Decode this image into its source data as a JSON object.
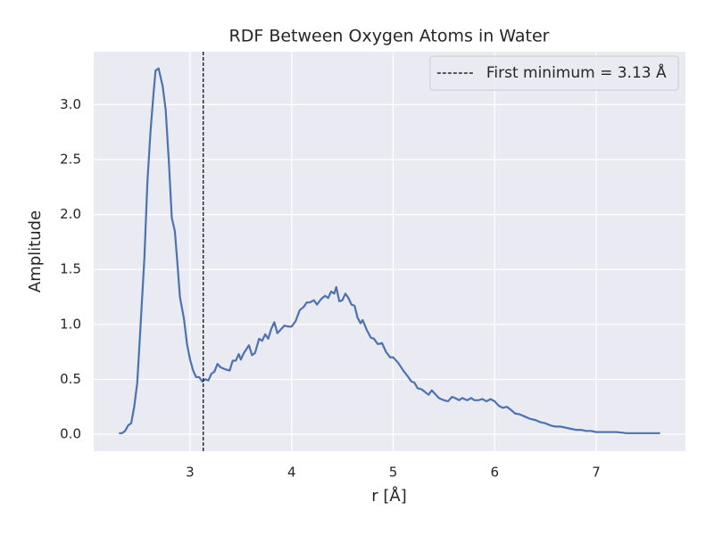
{
  "chart_data": {
    "type": "line",
    "title": "RDF Between Oxygen Atoms in Water",
    "xlabel": "r [Å]",
    "ylabel": "Amplitude",
    "x": [
      2.3,
      2.33,
      2.36,
      2.39,
      2.42,
      2.45,
      2.48,
      2.51,
      2.55,
      2.58,
      2.61,
      2.64,
      2.66,
      2.69,
      2.73,
      2.76,
      2.79,
      2.82,
      2.85,
      2.88,
      2.9,
      2.94,
      2.97,
      3.0,
      3.03,
      3.06,
      3.09,
      3.12,
      3.15,
      3.18,
      3.21,
      3.24,
      3.27,
      3.3,
      3.35,
      3.39,
      3.42,
      3.45,
      3.48,
      3.5,
      3.53,
      3.58,
      3.61,
      3.64,
      3.68,
      3.71,
      3.74,
      3.77,
      3.8,
      3.83,
      3.86,
      3.89,
      3.93,
      3.97,
      4.0,
      4.04,
      4.08,
      4.12,
      4.15,
      4.18,
      4.22,
      4.25,
      4.29,
      4.33,
      4.36,
      4.39,
      4.42,
      4.44,
      4.47,
      4.5,
      4.53,
      4.56,
      4.59,
      4.62,
      4.65,
      4.68,
      4.7,
      4.74,
      4.78,
      4.81,
      4.85,
      4.89,
      4.93,
      4.97,
      5.0,
      5.05,
      5.1,
      5.15,
      5.18,
      5.21,
      5.24,
      5.28,
      5.32,
      5.35,
      5.38,
      5.42,
      5.45,
      5.5,
      5.54,
      5.58,
      5.61,
      5.65,
      5.68,
      5.73,
      5.77,
      5.8,
      5.84,
      5.88,
      5.92,
      5.96,
      6.0,
      6.04,
      6.08,
      6.12,
      6.15,
      6.2,
      6.25,
      6.3,
      6.35,
      6.4,
      6.45,
      6.5,
      6.55,
      6.6,
      6.65,
      6.7,
      6.75,
      6.8,
      6.85,
      6.9,
      6.95,
      7.0,
      7.05,
      7.1,
      7.15,
      7.2,
      7.3,
      7.4,
      7.5,
      7.63
    ],
    "values": [
      0.01,
      0.01,
      0.03,
      0.08,
      0.1,
      0.25,
      0.47,
      0.95,
      1.6,
      2.3,
      2.75,
      3.1,
      3.31,
      3.33,
      3.17,
      2.95,
      2.5,
      1.97,
      1.85,
      1.5,
      1.25,
      1.05,
      0.82,
      0.68,
      0.58,
      0.52,
      0.52,
      0.48,
      0.5,
      0.49,
      0.55,
      0.57,
      0.64,
      0.61,
      0.59,
      0.58,
      0.67,
      0.67,
      0.73,
      0.68,
      0.74,
      0.81,
      0.72,
      0.74,
      0.87,
      0.85,
      0.91,
      0.87,
      0.96,
      1.02,
      0.92,
      0.95,
      0.99,
      0.98,
      0.98,
      1.03,
      1.13,
      1.16,
      1.2,
      1.2,
      1.22,
      1.18,
      1.23,
      1.26,
      1.24,
      1.3,
      1.28,
      1.34,
      1.21,
      1.22,
      1.28,
      1.24,
      1.18,
      1.17,
      1.06,
      1.01,
      1.04,
      0.95,
      0.88,
      0.87,
      0.82,
      0.83,
      0.75,
      0.7,
      0.7,
      0.65,
      0.58,
      0.52,
      0.48,
      0.47,
      0.42,
      0.41,
      0.38,
      0.36,
      0.4,
      0.36,
      0.33,
      0.31,
      0.3,
      0.34,
      0.33,
      0.31,
      0.33,
      0.31,
      0.33,
      0.31,
      0.31,
      0.32,
      0.3,
      0.32,
      0.3,
      0.26,
      0.24,
      0.25,
      0.23,
      0.19,
      0.18,
      0.16,
      0.14,
      0.13,
      0.11,
      0.1,
      0.08,
      0.07,
      0.07,
      0.06,
      0.05,
      0.04,
      0.04,
      0.03,
      0.03,
      0.02,
      0.02,
      0.02,
      0.02,
      0.02,
      0.01,
      0.01,
      0.01,
      0.01
    ],
    "color": "#4c72b0",
    "vlines": [
      {
        "x": 3.13,
        "label": "First minimum = 3.13 Å",
        "color": "#000000",
        "linestyle": "dashed"
      }
    ],
    "xlim": [
      2.051,
      7.879
    ],
    "ylim": [
      -0.154,
      3.482
    ],
    "xticks": [
      3,
      4,
      5,
      6,
      7
    ],
    "yticks": [
      {
        "value": 0,
        "label": "0.0"
      },
      {
        "value": 0.5,
        "label": "0.5"
      },
      {
        "value": 1,
        "label": "1.0"
      },
      {
        "value": 1.5,
        "label": "1.5"
      },
      {
        "value": 2,
        "label": "2.0"
      },
      {
        "value": 2.5,
        "label": "2.5"
      },
      {
        "value": 3,
        "label": "3.0"
      }
    ],
    "grid": true,
    "legend": "upper right"
  }
}
